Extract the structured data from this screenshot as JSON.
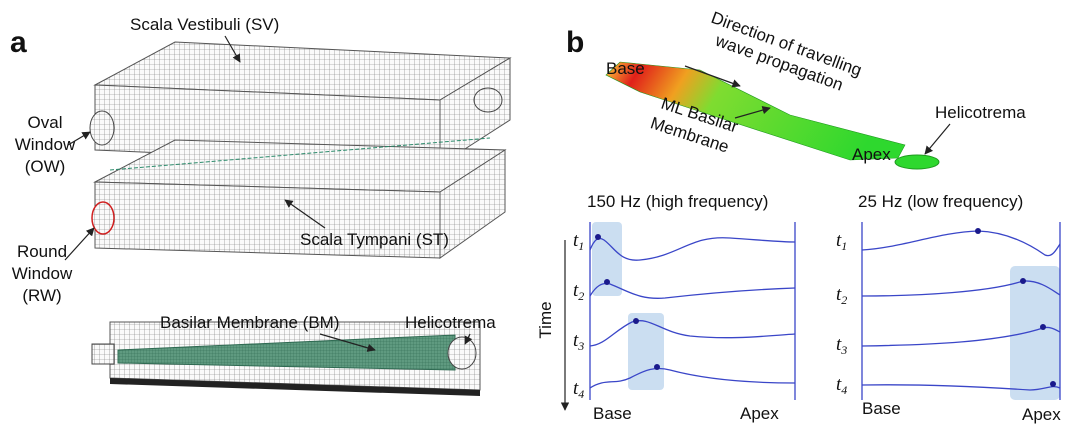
{
  "panel_a": {
    "label": "a",
    "scala_vestibuli": "Scala Vestibuli (SV)",
    "oval_window": [
      "Oval",
      "Window",
      "(OW)"
    ],
    "round_window": [
      "Round",
      "Window",
      "(RW)"
    ],
    "scala_tympani": "Scala Tympani (ST)",
    "basilar_membrane": "Basilar Membrane (BM)",
    "helicotrema": "Helicotrema"
  },
  "panel_b": {
    "label": "b",
    "base": "Base",
    "direction": [
      "Direction of travelling",
      "wave propagation"
    ],
    "membrane": [
      "ML Basilar",
      "Membrane"
    ],
    "apex": "Apex",
    "helicotrema": "Helicotrema",
    "time_axis": "Time",
    "high": {
      "title": "150 Hz (high frequency)",
      "times": [
        [
          "t",
          "1"
        ],
        [
          "t",
          "2"
        ],
        [
          "t",
          "3"
        ],
        [
          "t",
          "4"
        ]
      ],
      "base": "Base",
      "apex": "Apex"
    },
    "low": {
      "title": "25 Hz (low frequency)",
      "times": [
        [
          "t",
          "1"
        ],
        [
          "t",
          "2"
        ],
        [
          "t",
          "3"
        ],
        [
          "t",
          "4"
        ]
      ],
      "base": "Base",
      "apex": "Apex"
    }
  }
}
